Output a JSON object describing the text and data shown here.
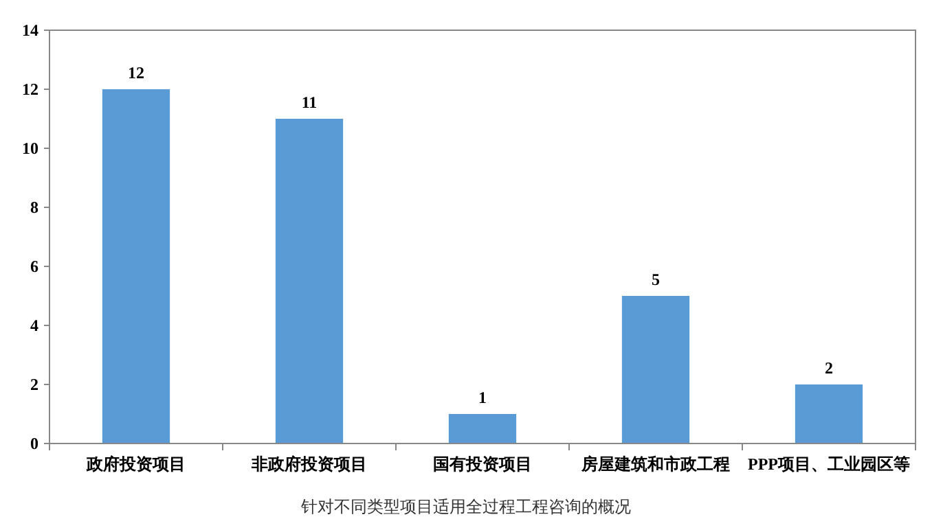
{
  "chart_data": {
    "type": "bar",
    "categories": [
      "政府投资项目",
      "非政府投资项目",
      "国有投资项目",
      "房屋建筑和市政工程",
      "PPP项目、工业园区等"
    ],
    "values": [
      12,
      11,
      1,
      5,
      2
    ],
    "color": "#5b9bd5",
    "ylim": [
      0,
      14
    ],
    "yticks": [
      0,
      2,
      4,
      6,
      8,
      10,
      12,
      14
    ],
    "data_labels": true,
    "grid": false,
    "annotations": [
      "针对不同类型项目适用全过程工程咨询的概况"
    ]
  }
}
